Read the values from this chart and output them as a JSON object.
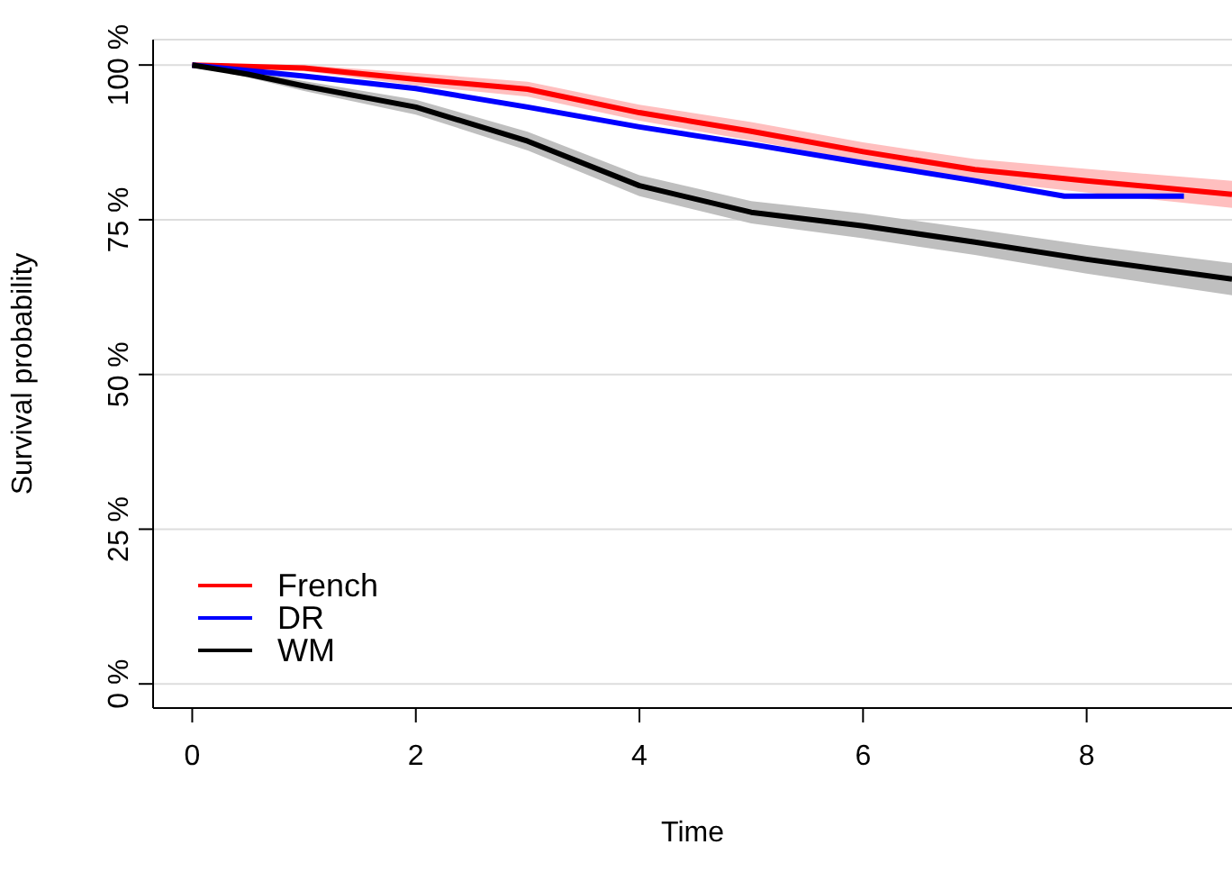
{
  "chart_data": {
    "type": "line",
    "xlabel": "Time",
    "ylabel": "Survival probability",
    "xlim": [
      -0.35,
      9.3
    ],
    "xticks": [
      0,
      2,
      4,
      6,
      8
    ],
    "ylim": [
      -3.9,
      104.1
    ],
    "yticks": [
      {
        "value": 0,
        "label": "0 %"
      },
      {
        "value": 25,
        "label": "25 %"
      },
      {
        "value": 50,
        "label": "50 %"
      },
      {
        "value": 75,
        "label": "75 %"
      },
      {
        "value": 100,
        "label": "100 %"
      }
    ],
    "grid": "y",
    "legend": "bottom left",
    "marker": "none",
    "line_style": "solid",
    "series": [
      {
        "name": "French",
        "color": "#ff0000",
        "x": [
          0,
          1,
          2,
          3,
          4,
          5,
          6,
          7,
          8,
          9.3
        ],
        "values": [
          100,
          99.5,
          97.7,
          96.1,
          92.3,
          89.3,
          86,
          83.1,
          81.3,
          79.1
        ],
        "lower": [
          100,
          99,
          96.7,
          94.9,
          91,
          87.8,
          84.5,
          81.4,
          79.4,
          76.9
        ],
        "upper": [
          100,
          100,
          98.7,
          97.3,
          93.6,
          90.8,
          87.5,
          84.8,
          83.2,
          81.3
        ]
      },
      {
        "name": "DR",
        "color": "#0000ff",
        "x": [
          0,
          1,
          2,
          3,
          4,
          5,
          6,
          7,
          7.8,
          8.87
        ],
        "values": [
          100,
          98.2,
          96.2,
          93.2,
          90,
          87.2,
          84.2,
          81.3,
          78.8,
          78.8
        ]
      },
      {
        "name": "WM",
        "color": "#000000",
        "x": [
          0,
          0.5,
          1,
          2,
          3,
          4,
          5,
          6,
          7,
          8,
          9.3
        ],
        "values": [
          100,
          98.5,
          96.6,
          93.2,
          87.7,
          80.5,
          76.2,
          74,
          71.4,
          68.6,
          65.4
        ],
        "lower": [
          100,
          98,
          95.8,
          92,
          86.2,
          78.8,
          74.4,
          72,
          69.3,
          66.3,
          62.8
        ],
        "upper": [
          100,
          99,
          97.4,
          94.4,
          89.2,
          82.2,
          78,
          76,
          73.5,
          70.9,
          68
        ]
      }
    ]
  }
}
